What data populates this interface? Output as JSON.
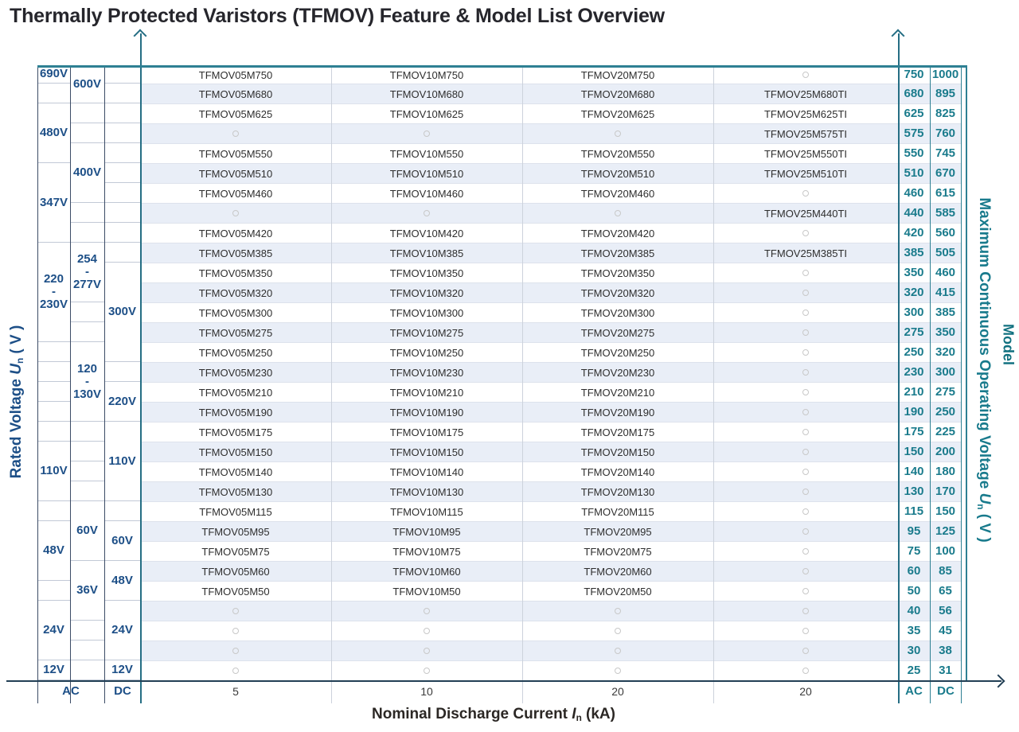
{
  "chart_data": {
    "type": "table",
    "title": "Thermally Protected Varistors (TFMOV) Feature & Model List Overview",
    "colors": {
      "teal_accent": "#2e8093",
      "teal_text": "#1a7b8c",
      "navy_text": "#1d4f87",
      "dark_axis": "#223f55",
      "row_stripe": "#e9eef7",
      "gridline": "#dde2ec",
      "model_text": "#2e2e2e",
      "title_text": "#26262c",
      "empty_circle": "#c8c8c8"
    },
    "y_axis_left": {
      "label_parts": {
        "pre": "Rated Voltage ",
        "sym": "U",
        "sub": "n",
        "post": " ( V )"
      },
      "footer_ac": "AC",
      "footer_dc": "DC",
      "ac_outer_cells": [
        {
          "label": "690V",
          "from": 1,
          "to": 1
        },
        {
          "label": "",
          "from": 2,
          "to": 2
        },
        {
          "label": "480V",
          "from": 3,
          "to": 5
        },
        {
          "label": "347V",
          "from": 6,
          "to": 9
        },
        {
          "label": "220\n-\n230V",
          "from": 10,
          "to": 14
        },
        {
          "label": "",
          "from": 15,
          "to": 15
        },
        {
          "label": "",
          "from": 16,
          "to": 16
        },
        {
          "label": "",
          "from": 17,
          "to": 17
        },
        {
          "label": "",
          "from": 18,
          "to": 18
        },
        {
          "label": "",
          "from": 19,
          "to": 19
        },
        {
          "label": "110V",
          "from": 20,
          "to": 22
        },
        {
          "label": "",
          "from": 23,
          "to": 23
        },
        {
          "label": "48V",
          "from": 24,
          "to": 26
        },
        {
          "label": "",
          "from": 27,
          "to": 27
        },
        {
          "label": "24V",
          "from": 28,
          "to": 30
        },
        {
          "label": "12V",
          "from": 31,
          "to": 31
        }
      ],
      "ac_inner_cells": [
        {
          "label": "600V",
          "from": 1,
          "to": 2
        },
        {
          "label": "",
          "from": 3,
          "to": 3
        },
        {
          "label": "",
          "from": 4,
          "to": 4
        },
        {
          "label": "400V",
          "from": 5,
          "to": 7
        },
        {
          "label": "",
          "from": 8,
          "to": 8
        },
        {
          "label": "",
          "from": 9,
          "to": 9
        },
        {
          "label": "254\n-\n277V",
          "from": 10,
          "to": 12
        },
        {
          "label": "",
          "from": 13,
          "to": 13
        },
        {
          "label": "",
          "from": 14,
          "to": 14
        },
        {
          "label": "120\n-\n130V",
          "from": 15,
          "to": 18
        },
        {
          "label": "",
          "from": 19,
          "to": 19
        },
        {
          "label": "",
          "from": 20,
          "to": 20
        },
        {
          "label": "",
          "from": 21,
          "to": 21
        },
        {
          "label": "",
          "from": 22,
          "to": 22
        },
        {
          "label": "60V",
          "from": 23,
          "to": 25
        },
        {
          "label": "36V",
          "from": 26,
          "to": 28
        },
        {
          "label": "",
          "from": 29,
          "to": 29
        },
        {
          "label": "",
          "from": 30,
          "to": 30
        },
        {
          "label": "",
          "from": 31,
          "to": 31
        }
      ],
      "dc_cells": [
        {
          "label": "",
          "from": 1,
          "to": 1
        },
        {
          "label": "",
          "from": 2,
          "to": 2
        },
        {
          "label": "",
          "from": 3,
          "to": 3
        },
        {
          "label": "",
          "from": 4,
          "to": 4
        },
        {
          "label": "",
          "from": 5,
          "to": 5
        },
        {
          "label": "",
          "from": 6,
          "to": 6
        },
        {
          "label": "",
          "from": 7,
          "to": 7
        },
        {
          "label": "",
          "from": 8,
          "to": 8
        },
        {
          "label": "",
          "from": 9,
          "to": 9
        },
        {
          "label": "",
          "from": 10,
          "to": 10
        },
        {
          "label": "300V",
          "from": 11,
          "to": 15
        },
        {
          "label": "",
          "from": 16,
          "to": 16
        },
        {
          "label": "220V",
          "from": 17,
          "to": 18
        },
        {
          "label": "110V",
          "from": 19,
          "to": 22
        },
        {
          "label": "",
          "from": 23,
          "to": 23
        },
        {
          "label": "60V",
          "from": 24,
          "to": 25
        },
        {
          "label": "48V",
          "from": 26,
          "to": 27
        },
        {
          "label": "24V",
          "from": 28,
          "to": 30
        },
        {
          "label": "12V",
          "from": 31,
          "to": 31
        }
      ]
    },
    "y_axis_right": {
      "label_parts": {
        "pre": "Maximum Continuous Operating Voltage ",
        "sym": "U",
        "sub": "n",
        "post": " ( V )"
      },
      "model_label": "Model",
      "footer_ac": "AC",
      "footer_dc": "DC"
    },
    "x_axis": {
      "label_parts": {
        "pre": "Nominal Discharge Current ",
        "sym": "I",
        "sub": "n",
        "post": " (kA)"
      },
      "ticks": [
        "5",
        "10",
        "20",
        "20"
      ]
    },
    "rows": [
      {
        "m05": "TFMOV05M750",
        "m10": "TFMOV10M750",
        "m20": "TFMOV20M750",
        "m25": null,
        "ac": "750",
        "dc": "1000"
      },
      {
        "m05": "TFMOV05M680",
        "m10": "TFMOV10M680",
        "m20": "TFMOV20M680",
        "m25": "TFMOV25M680TI",
        "ac": "680",
        "dc": "895"
      },
      {
        "m05": "TFMOV05M625",
        "m10": "TFMOV10M625",
        "m20": "TFMOV20M625",
        "m25": "TFMOV25M625TI",
        "ac": "625",
        "dc": "825"
      },
      {
        "m05": null,
        "m10": null,
        "m20": null,
        "m25": "TFMOV25M575TI",
        "ac": "575",
        "dc": "760"
      },
      {
        "m05": "TFMOV05M550",
        "m10": "TFMOV10M550",
        "m20": "TFMOV20M550",
        "m25": "TFMOV25M550TI",
        "ac": "550",
        "dc": "745"
      },
      {
        "m05": "TFMOV05M510",
        "m10": "TFMOV10M510",
        "m20": "TFMOV20M510",
        "m25": "TFMOV25M510TI",
        "ac": "510",
        "dc": "670"
      },
      {
        "m05": "TFMOV05M460",
        "m10": "TFMOV10M460",
        "m20": "TFMOV20M460",
        "m25": null,
        "ac": "460",
        "dc": "615"
      },
      {
        "m05": null,
        "m10": null,
        "m20": null,
        "m25": "TFMOV25M440TI",
        "ac": "440",
        "dc": "585"
      },
      {
        "m05": "TFMOV05M420",
        "m10": "TFMOV10M420",
        "m20": "TFMOV20M420",
        "m25": null,
        "ac": "420",
        "dc": "560"
      },
      {
        "m05": "TFMOV05M385",
        "m10": "TFMOV10M385",
        "m20": "TFMOV20M385",
        "m25": "TFMOV25M385TI",
        "ac": "385",
        "dc": "505"
      },
      {
        "m05": "TFMOV05M350",
        "m10": "TFMOV10M350",
        "m20": "TFMOV20M350",
        "m25": null,
        "ac": "350",
        "dc": "460"
      },
      {
        "m05": "TFMOV05M320",
        "m10": "TFMOV10M320",
        "m20": "TFMOV20M320",
        "m25": null,
        "ac": "320",
        "dc": "415"
      },
      {
        "m05": "TFMOV05M300",
        "m10": "TFMOV10M300",
        "m20": "TFMOV20M300",
        "m25": null,
        "ac": "300",
        "dc": "385"
      },
      {
        "m05": "TFMOV05M275",
        "m10": "TFMOV10M275",
        "m20": "TFMOV20M275",
        "m25": null,
        "ac": "275",
        "dc": "350"
      },
      {
        "m05": "TFMOV05M250",
        "m10": "TFMOV10M250",
        "m20": "TFMOV20M250",
        "m25": null,
        "ac": "250",
        "dc": "320"
      },
      {
        "m05": "TFMOV05M230",
        "m10": "TFMOV10M230",
        "m20": "TFMOV20M230",
        "m25": null,
        "ac": "230",
        "dc": "300"
      },
      {
        "m05": "TFMOV05M210",
        "m10": "TFMOV10M210",
        "m20": "TFMOV20M210",
        "m25": null,
        "ac": "210",
        "dc": "275"
      },
      {
        "m05": "TFMOV05M190",
        "m10": "TFMOV10M190",
        "m20": "TFMOV20M190",
        "m25": null,
        "ac": "190",
        "dc": "250"
      },
      {
        "m05": "TFMOV05M175",
        "m10": "TFMOV10M175",
        "m20": "TFMOV20M175",
        "m25": null,
        "ac": "175",
        "dc": "225"
      },
      {
        "m05": "TFMOV05M150",
        "m10": "TFMOV10M150",
        "m20": "TFMOV20M150",
        "m25": null,
        "ac": "150",
        "dc": "200"
      },
      {
        "m05": "TFMOV05M140",
        "m10": "TFMOV10M140",
        "m20": "TFMOV20M140",
        "m25": null,
        "ac": "140",
        "dc": "180"
      },
      {
        "m05": "TFMOV05M130",
        "m10": "TFMOV10M130",
        "m20": "TFMOV20M130",
        "m25": null,
        "ac": "130",
        "dc": "170"
      },
      {
        "m05": "TFMOV05M115",
        "m10": "TFMOV10M115",
        "m20": "TFMOV20M115",
        "m25": null,
        "ac": "115",
        "dc": "150"
      },
      {
        "m05": "TFMOV05M95",
        "m10": "TFMOV10M95",
        "m20": "TFMOV20M95",
        "m25": null,
        "ac": "95",
        "dc": "125"
      },
      {
        "m05": "TFMOV05M75",
        "m10": "TFMOV10M75",
        "m20": "TFMOV20M75",
        "m25": null,
        "ac": "75",
        "dc": "100"
      },
      {
        "m05": "TFMOV05M60",
        "m10": "TFMOV10M60",
        "m20": "TFMOV20M60",
        "m25": null,
        "ac": "60",
        "dc": "85"
      },
      {
        "m05": "TFMOV05M50",
        "m10": "TFMOV10M50",
        "m20": "TFMOV20M50",
        "m25": null,
        "ac": "50",
        "dc": "65"
      },
      {
        "m05": null,
        "m10": null,
        "m20": null,
        "m25": null,
        "ac": "40",
        "dc": "56"
      },
      {
        "m05": null,
        "m10": null,
        "m20": null,
        "m25": null,
        "ac": "35",
        "dc": "45"
      },
      {
        "m05": null,
        "m10": null,
        "m20": null,
        "m25": null,
        "ac": "30",
        "dc": "38"
      },
      {
        "m05": null,
        "m10": null,
        "m20": null,
        "m25": null,
        "ac": "25",
        "dc": "31"
      }
    ]
  }
}
